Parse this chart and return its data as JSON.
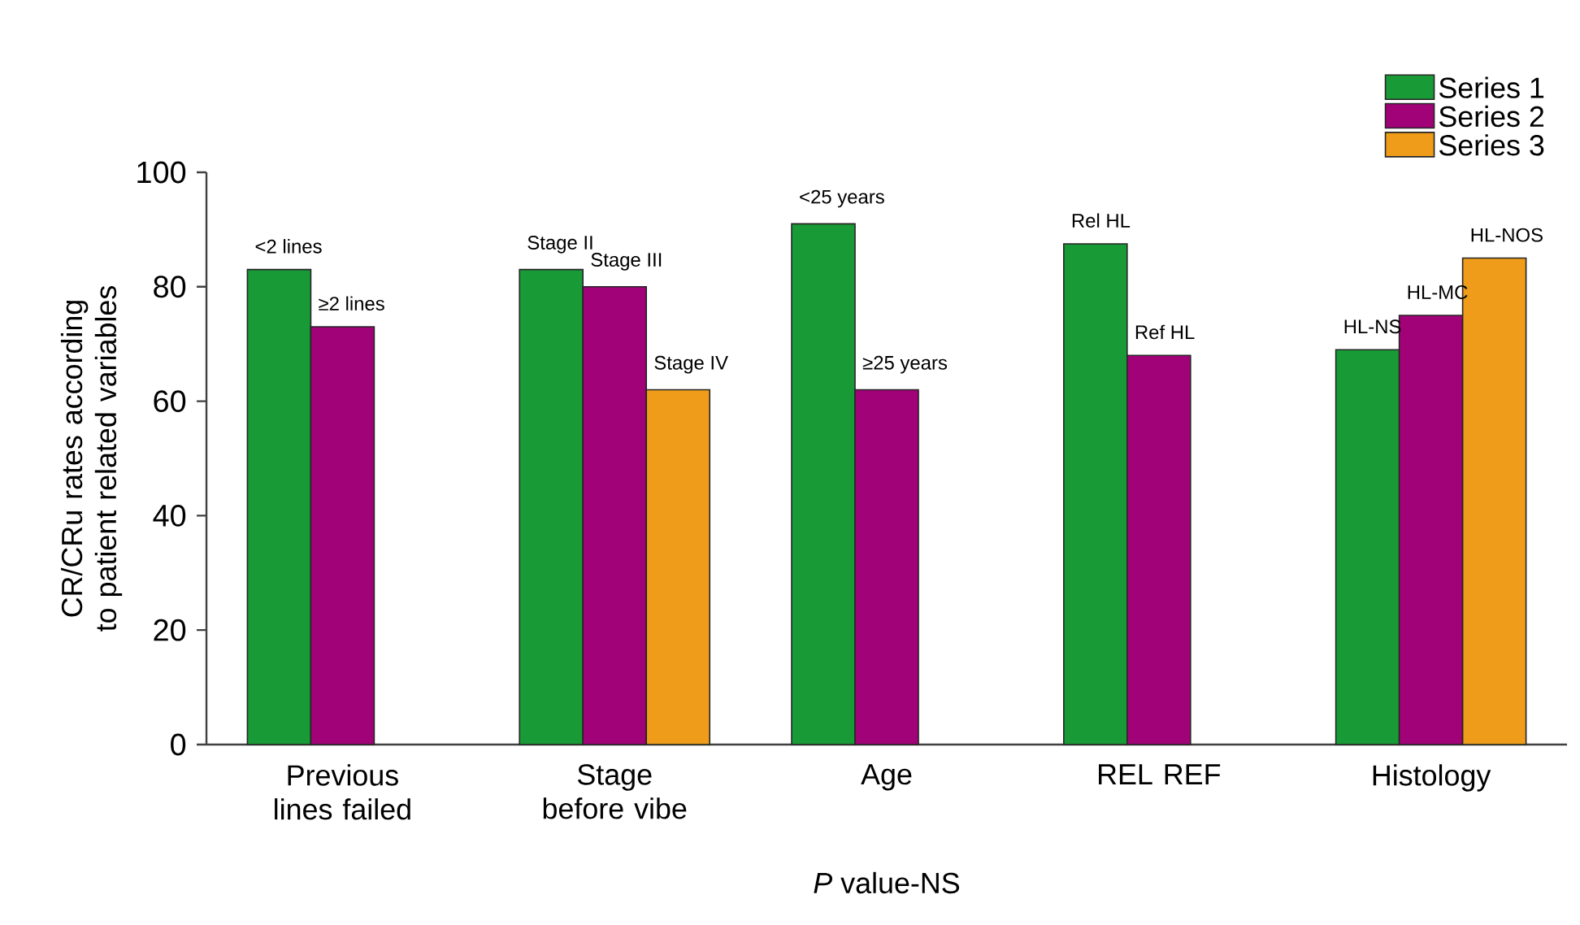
{
  "chart_data": {
    "type": "bar",
    "xlabel": "*P* value-NS",
    "ylabel": "CR/CRu rates according to patient related variables",
    "categories": [
      "Previous lines failed",
      "Stage before vibe",
      "Age",
      "REL REF",
      "Histology"
    ],
    "series": [
      {
        "name": "Series 1",
        "color": "#189a36",
        "values": [
          83,
          83,
          91,
          87.5,
          69
        ]
      },
      {
        "name": "Series 2",
        "color": "#a10277",
        "values": [
          73,
          80,
          62,
          68,
          75
        ]
      },
      {
        "name": "Series 3",
        "color": "#ee9c1a",
        "values": [
          null,
          62,
          null,
          null,
          85
        ]
      }
    ],
    "ylim": [
      0,
      100
    ],
    "yticks": [
      0,
      20,
      40,
      60,
      80,
      100
    ],
    "legend": "top right",
    "grid": false,
    "annotations": [
      "<2 lines",
      "≥2 lines",
      "Stage II",
      "Stage III",
      "Stage IV",
      "<25 years",
      "≥25 years",
      "Rel HL",
      "Ref HL",
      "HL-NS",
      "HL-MC",
      "HL-NOS"
    ]
  }
}
